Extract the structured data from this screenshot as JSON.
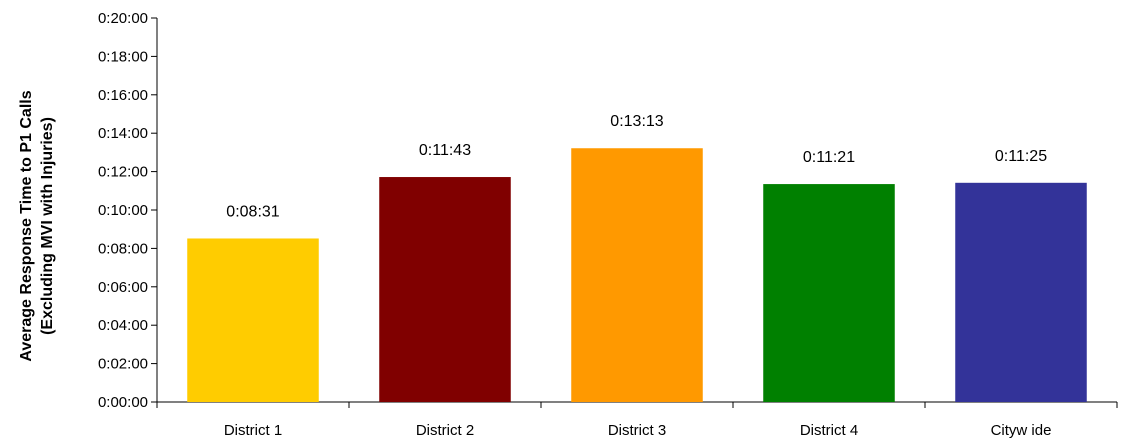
{
  "chart_data": {
    "type": "bar",
    "categories": [
      "District 1",
      "District 2",
      "District 3",
      "District 4",
      "Cityw ide"
    ],
    "values": [
      511,
      703,
      793,
      681,
      685
    ],
    "value_labels": [
      "0:08:31",
      "0:11:43",
      "0:13:13",
      "0:11:21",
      "0:11:25"
    ],
    "colors": [
      "#ffcc00",
      "#800000",
      "#ff9900",
      "#008000",
      "#333399"
    ],
    "title": "",
    "xlabel": "",
    "ylabel_lines": [
      "Average Response Time to P1 Calls",
      "(Excluding MVI with Injuries)"
    ],
    "ylim": [
      0,
      1200
    ],
    "y_tick_values": [
      0,
      120,
      240,
      360,
      480,
      600,
      720,
      840,
      960,
      1080,
      1200
    ],
    "y_tick_labels": [
      "0:00:00",
      "0:02:00",
      "0:04:00",
      "0:06:00",
      "0:08:00",
      "0:10:00",
      "0:12:00",
      "0:14:00",
      "0:16:00",
      "0:18:00",
      "0:20:00"
    ],
    "grid": false,
    "legend": "none"
  }
}
